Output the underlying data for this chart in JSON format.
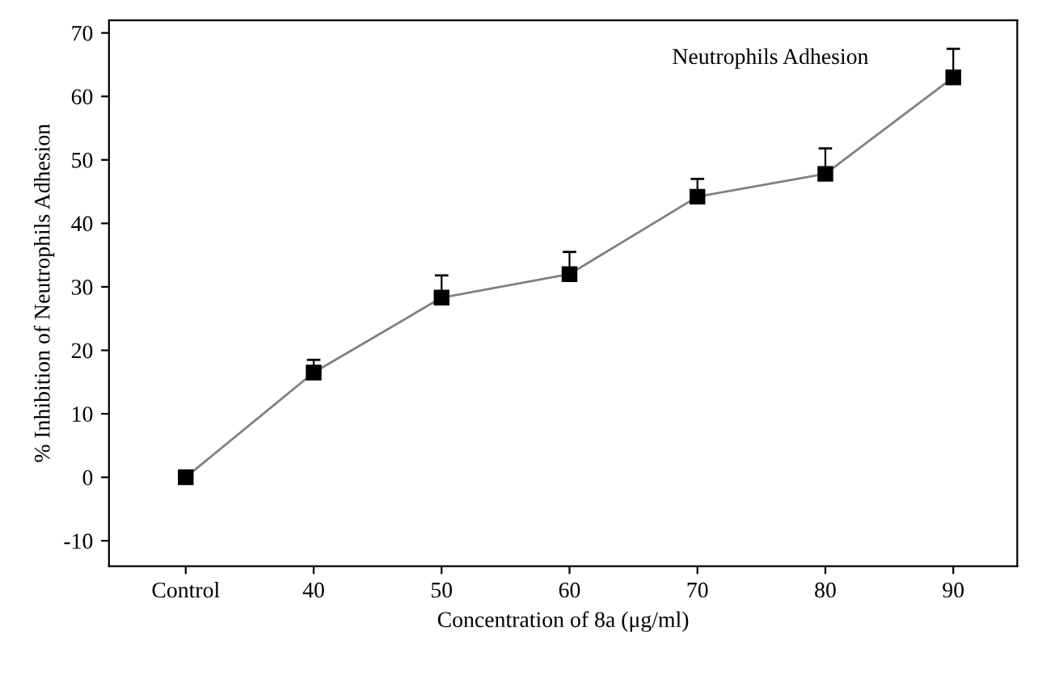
{
  "chart_data": {
    "type": "line",
    "categories": [
      "Control",
      "40",
      "50",
      "60",
      "70",
      "80",
      "90"
    ],
    "series": [
      {
        "color": "#000000",
        "values": [
          0,
          16.5,
          28.3,
          32,
          44.2,
          47.8,
          63
        ],
        "errors": [
          null,
          [
            16.5,
            18.5
          ],
          [
            28.3,
            31.8
          ],
          [
            32,
            35.5
          ],
          [
            44.2,
            47
          ],
          [
            47.8,
            51.8
          ],
          [
            63,
            67.5
          ]
        ]
      }
    ],
    "xlabel": "Concentration of 8a (μg/ml)",
    "ylabel": "% Inhibition of Neutrophils Adhesion",
    "annotations": [
      "Neutrophils Adhesion"
    ],
    "ylim": [
      -14,
      72
    ],
    "yticks": [
      -10,
      0,
      10,
      20,
      30,
      40,
      50,
      60,
      70
    ],
    "marker": "square",
    "line_style": "solid",
    "grid": false,
    "legend": false
  }
}
